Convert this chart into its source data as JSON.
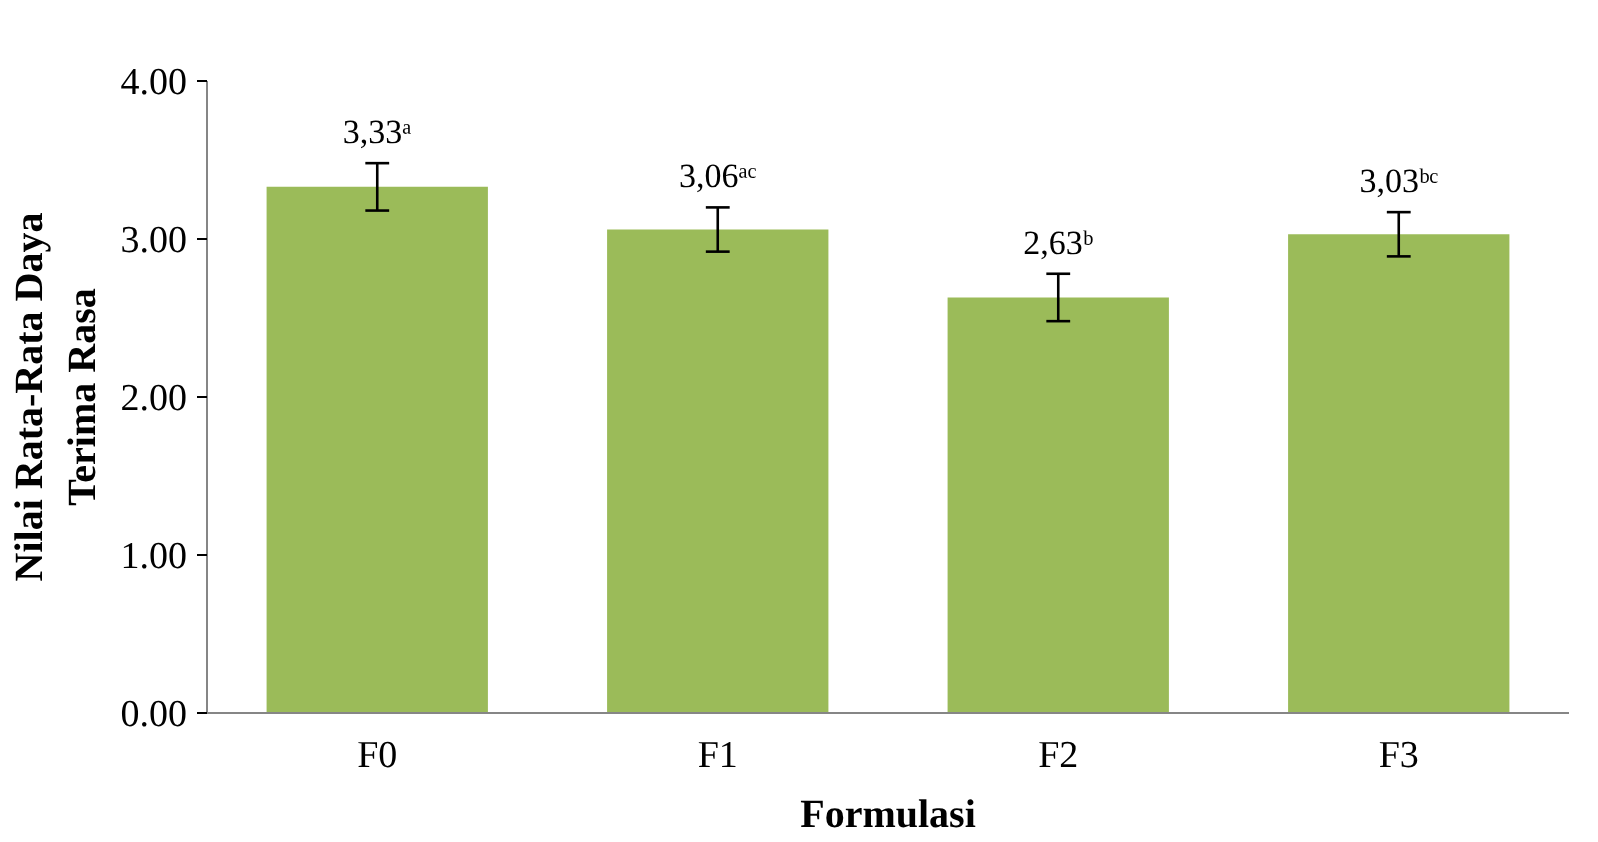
{
  "chart_data": {
    "type": "bar",
    "xlabel": "Formulasi",
    "ylabel": "Nilai Rata-Rata Daya\nTerima Rasa",
    "categories": [
      "F0",
      "F1",
      "F2",
      "F3"
    ],
    "values": [
      3.33,
      3.06,
      2.63,
      3.03
    ],
    "errors": [
      0.15,
      0.14,
      0.15,
      0.14
    ],
    "value_labels": [
      "3,33ᵃ",
      "3,06ᵃᶜ",
      "2,63ᵇ",
      "3,03ᵇᶜ"
    ],
    "color": "#9bbb59",
    "ylim": [
      0,
      4
    ],
    "yticks": [
      {
        "value": 0,
        "label": "0.00"
      },
      {
        "value": 1,
        "label": "1.00"
      },
      {
        "value": 2,
        "label": "2.00"
      },
      {
        "value": 3,
        "label": "3.00"
      },
      {
        "value": 4,
        "label": "4.00"
      }
    ],
    "grid": false
  }
}
